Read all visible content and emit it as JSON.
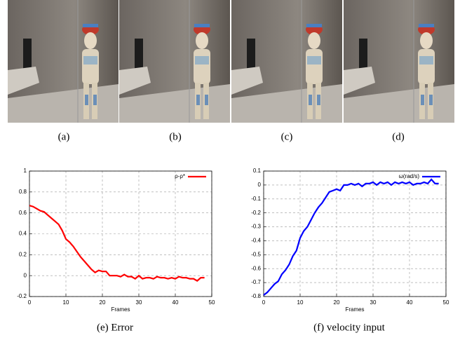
{
  "photos": [
    {
      "caption": "(a)"
    },
    {
      "caption": "(b)"
    },
    {
      "caption": "(c)"
    },
    {
      "caption": "(d)"
    }
  ],
  "chart_data": [
    {
      "type": "line",
      "caption": "(e) Error",
      "x_label": "Frames",
      "x": [
        0,
        1,
        2,
        3,
        4,
        5,
        6,
        7,
        8,
        9,
        10,
        11,
        12,
        13,
        14,
        15,
        16,
        17,
        18,
        19,
        20,
        21,
        22,
        23,
        24,
        25,
        26,
        27,
        28,
        29,
        30,
        31,
        32,
        33,
        34,
        35,
        36,
        37,
        38,
        39,
        40,
        41,
        42,
        43,
        44,
        45,
        46,
        47,
        48
      ],
      "series": [
        {
          "name": "ρ-ρ*",
          "color": "#ff0000",
          "values": [
            0.67,
            0.66,
            0.64,
            0.62,
            0.61,
            0.58,
            0.55,
            0.52,
            0.49,
            0.43,
            0.35,
            0.32,
            0.28,
            0.23,
            0.18,
            0.14,
            0.1,
            0.06,
            0.03,
            0.05,
            0.04,
            0.04,
            0.0,
            0.0,
            0.0,
            -0.01,
            0.01,
            -0.01,
            -0.01,
            -0.03,
            0.0,
            -0.03,
            -0.02,
            -0.02,
            -0.03,
            -0.01,
            -0.02,
            -0.02,
            -0.03,
            -0.02,
            -0.03,
            -0.01,
            -0.02,
            -0.02,
            -0.03,
            -0.03,
            -0.05,
            -0.02,
            -0.02
          ]
        }
      ],
      "xlim": [
        0,
        50
      ],
      "xticks": [
        0,
        10,
        20,
        30,
        40,
        50
      ],
      "ylim": [
        -0.2,
        1
      ],
      "yticks": [
        -0.2,
        0,
        0.2,
        0.4,
        0.6,
        0.8,
        1
      ],
      "grid": true,
      "legend": "upper right"
    },
    {
      "type": "line",
      "caption": "(f) velocity input",
      "x_label": "Frames",
      "x": [
        0,
        1,
        2,
        3,
        4,
        5,
        6,
        7,
        8,
        9,
        10,
        11,
        12,
        13,
        14,
        15,
        16,
        17,
        18,
        19,
        20,
        21,
        22,
        23,
        24,
        25,
        26,
        27,
        28,
        29,
        30,
        31,
        32,
        33,
        34,
        35,
        36,
        37,
        38,
        39,
        40,
        41,
        42,
        43,
        44,
        45,
        46,
        47,
        48
      ],
      "series": [
        {
          "name": "ω(rad/s)",
          "color": "#0000ff",
          "values": [
            -0.79,
            -0.77,
            -0.74,
            -0.71,
            -0.69,
            -0.64,
            -0.61,
            -0.57,
            -0.51,
            -0.47,
            -0.38,
            -0.33,
            -0.3,
            -0.25,
            -0.2,
            -0.16,
            -0.13,
            -0.09,
            -0.05,
            -0.04,
            -0.03,
            -0.04,
            0.0,
            0.0,
            0.01,
            0.0,
            0.01,
            -0.01,
            0.01,
            0.01,
            0.02,
            0.0,
            0.02,
            0.01,
            0.02,
            0.0,
            0.02,
            0.01,
            0.02,
            0.01,
            0.02,
            0.0,
            0.01,
            0.01,
            0.02,
            0.01,
            0.04,
            0.01,
            0.01
          ]
        }
      ],
      "xlim": [
        0,
        50
      ],
      "xticks": [
        0,
        10,
        20,
        30,
        40,
        50
      ],
      "ylim": [
        -0.8,
        0.1
      ],
      "yticks": [
        -0.8,
        -0.7,
        -0.6,
        -0.5,
        -0.4,
        -0.3,
        -0.2,
        -0.1,
        0,
        0.1
      ],
      "grid": true,
      "legend": "upper right"
    }
  ]
}
